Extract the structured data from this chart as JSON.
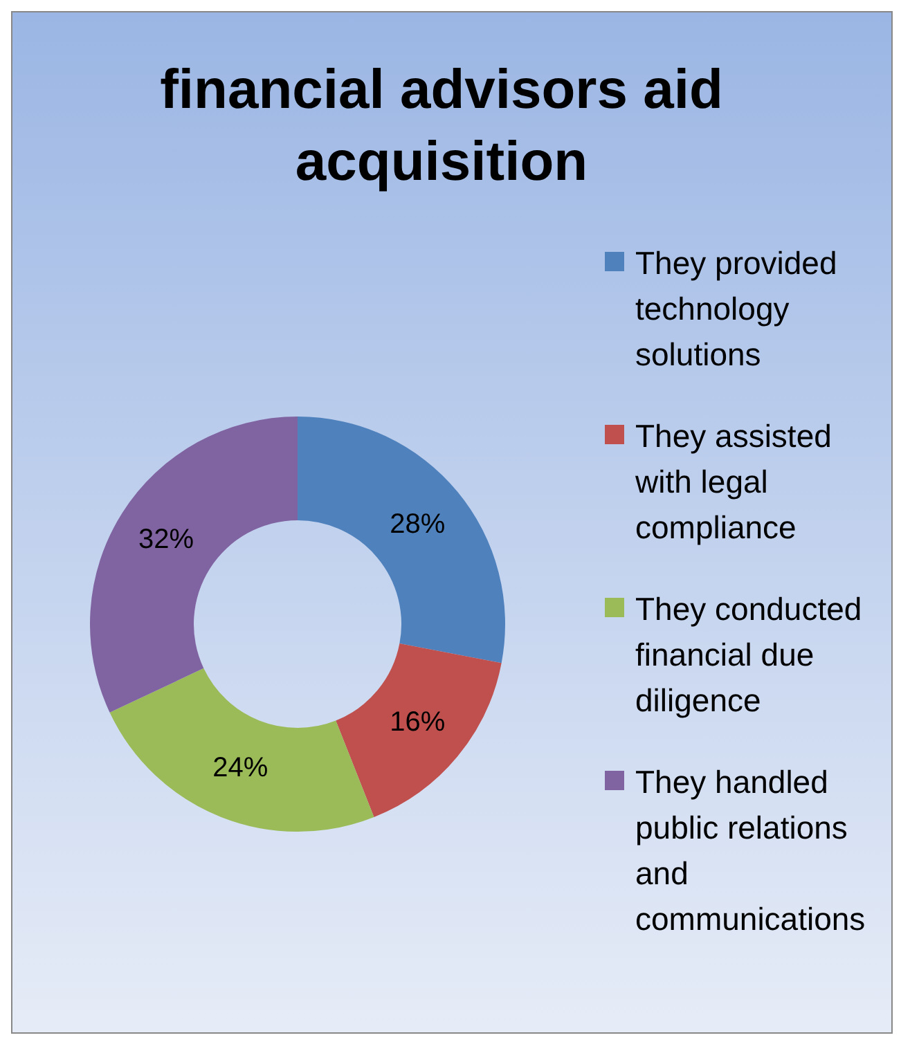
{
  "chart_data": {
    "type": "donut",
    "title": "financial advisors aid acquisition",
    "categories": [
      "They provided technology solutions",
      "They assisted with legal compliance",
      "They conducted financial due diligence",
      "They handled public relations and communications"
    ],
    "values": [
      28,
      16,
      24,
      32
    ],
    "colors": [
      "#4f81bd",
      "#c0504d",
      "#9bbb59",
      "#8064a2"
    ],
    "value_labels": [
      "28%",
      "16%",
      "24%",
      "32%"
    ],
    "legend": "right"
  }
}
